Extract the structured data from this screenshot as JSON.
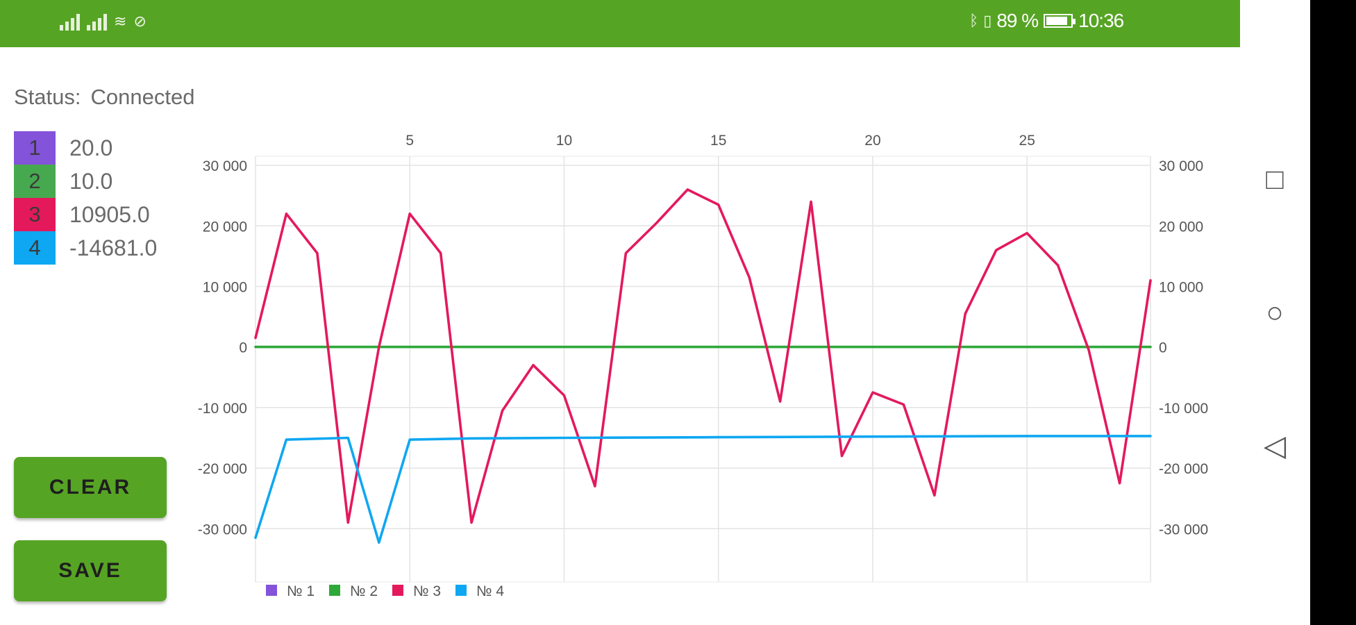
{
  "status_bar": {
    "battery": "89 %",
    "time": "10:36"
  },
  "status": {
    "label": "Status:",
    "value": "Connected"
  },
  "channels": [
    {
      "id": "1",
      "value": "20.0",
      "color": "#8353d9"
    },
    {
      "id": "2",
      "value": "10.0",
      "color": "#46a94f"
    },
    {
      "id": "3",
      "value": "10905.0",
      "color": "#e4195c"
    },
    {
      "id": "4",
      "value": "-14681.0",
      "color": "#0ea7f2"
    }
  ],
  "buttons": {
    "clear": "CLEAR",
    "save": "SAVE"
  },
  "chart_data": {
    "type": "line",
    "x_ticks": [
      "5",
      "10",
      "15",
      "20",
      "25"
    ],
    "y_ticks": [
      "30 000",
      "20 000",
      "10 000",
      "0",
      "-10 000",
      "-20 000",
      "-30 000"
    ],
    "y_ticks_right": [
      "30 000",
      "20 000",
      "10 000",
      "0",
      "-10 000",
      "-20 000",
      "-30 000"
    ],
    "xlim": [
      0,
      29
    ],
    "ylim": [
      -38800,
      31500
    ],
    "grid": true,
    "legend": "bottom-left",
    "series": [
      {
        "name": "№ 1",
        "color": "#8353d9",
        "x": [
          0,
          29
        ],
        "y": [
          20,
          20
        ]
      },
      {
        "name": "№ 2",
        "color": "#2fa83a",
        "x": [
          0,
          29
        ],
        "y": [
          10,
          10
        ]
      },
      {
        "name": "№ 3",
        "color": "#e4195c",
        "x": [
          0,
          1,
          2,
          3,
          4,
          5,
          6,
          7,
          8,
          9,
          10,
          11,
          12,
          13,
          14,
          15,
          16,
          17,
          18,
          19,
          20,
          21,
          22,
          23,
          24,
          25,
          26,
          27,
          28,
          29
        ],
        "y": [
          1500,
          22000,
          15500,
          -29000,
          0,
          22000,
          15500,
          -29000,
          -10500,
          -3000,
          -8000,
          -23000,
          15500,
          20500,
          26000,
          23500,
          11500,
          -9000,
          24000,
          -18000,
          -7500,
          -9500,
          -24500,
          5500,
          16000,
          18800,
          13500,
          -500,
          -22500,
          11000
        ]
      },
      {
        "name": "№ 4",
        "color": "#0ea7f2",
        "x": [
          0,
          1,
          3,
          4,
          5,
          7,
          10,
          15,
          20,
          25,
          29
        ],
        "y": [
          -31500,
          -15300,
          -15000,
          -32300,
          -15300,
          -15100,
          -15000,
          -14900,
          -14800,
          -14700,
          -14700
        ]
      }
    ]
  }
}
